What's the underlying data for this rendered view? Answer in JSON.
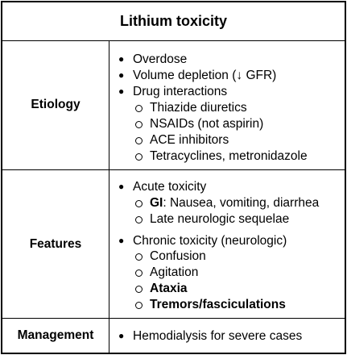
{
  "title": "Lithium toxicity",
  "rows": [
    {
      "label": "Etiology",
      "items": [
        {
          "level": 1,
          "text": "Overdose"
        },
        {
          "level": 1,
          "text": "Volume depletion (↓ GFR)"
        },
        {
          "level": 1,
          "text": "Drug interactions"
        },
        {
          "level": 2,
          "text": "Thiazide diuretics"
        },
        {
          "level": 2,
          "text": "NSAIDs (not aspirin)"
        },
        {
          "level": 2,
          "text": "ACE inhibitors"
        },
        {
          "level": 2,
          "text": "Tetracyclines, metronidazole"
        }
      ]
    },
    {
      "label": "Features",
      "items": [
        {
          "level": 1,
          "text": "Acute toxicity"
        },
        {
          "level": 2,
          "bold_prefix": "GI",
          "text": ": Nausea, vomiting, diarrhea"
        },
        {
          "level": 2,
          "text": "Late neurologic sequelae"
        },
        {
          "level": 1,
          "text": "Chronic toxicity (neurologic)"
        },
        {
          "level": 2,
          "text": "Confusion"
        },
        {
          "level": 2,
          "text": "Agitation"
        },
        {
          "level": 2,
          "text": "Ataxia",
          "bold": true
        },
        {
          "level": 2,
          "text": "Tremors/fasciculations",
          "bold": true
        }
      ]
    },
    {
      "label": "Management",
      "items": [
        {
          "level": 1,
          "text": "Hemodialysis for severe cases"
        }
      ]
    }
  ]
}
